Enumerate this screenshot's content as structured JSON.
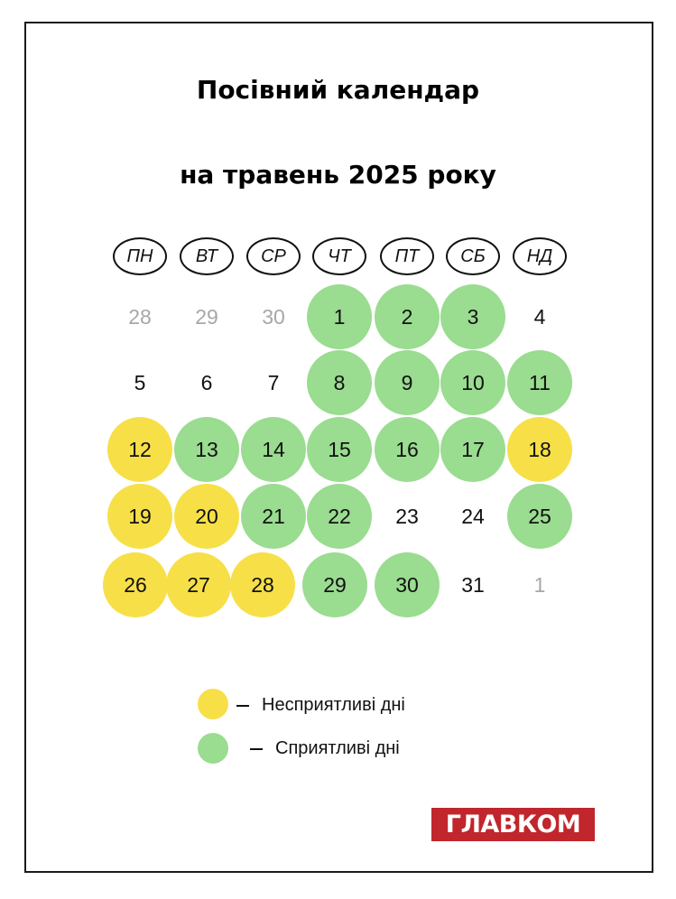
{
  "title_line1": "Посівний календар",
  "title_line2": "на травень 2025 року",
  "weekdays": [
    "ПН",
    "ВТ",
    "СР",
    "ЧТ",
    "ПТ",
    "СБ",
    "НД"
  ],
  "colors": {
    "favorable": "#9adc90",
    "unfavorable": "#f7df48",
    "muted_text": "#a7a7a7",
    "brand": "#c0262b"
  },
  "weeks": [
    [
      {
        "n": "28",
        "type": "muted"
      },
      {
        "n": "29",
        "type": "muted"
      },
      {
        "n": "30",
        "type": "muted"
      },
      {
        "n": "1",
        "type": "green"
      },
      {
        "n": "2",
        "type": "green"
      },
      {
        "n": "3",
        "type": "green"
      },
      {
        "n": "4",
        "type": "plain"
      }
    ],
    [
      {
        "n": "5",
        "type": "plain"
      },
      {
        "n": "6",
        "type": "plain"
      },
      {
        "n": "7",
        "type": "plain"
      },
      {
        "n": "8",
        "type": "green"
      },
      {
        "n": "9",
        "type": "green"
      },
      {
        "n": "10",
        "type": "green"
      },
      {
        "n": "11",
        "type": "green"
      }
    ],
    [
      {
        "n": "12",
        "type": "yellow"
      },
      {
        "n": "13",
        "type": "green"
      },
      {
        "n": "14",
        "type": "green"
      },
      {
        "n": "15",
        "type": "green"
      },
      {
        "n": "16",
        "type": "green"
      },
      {
        "n": "17",
        "type": "green"
      },
      {
        "n": "18",
        "type": "yellow"
      }
    ],
    [
      {
        "n": "19",
        "type": "yellow"
      },
      {
        "n": "20",
        "type": "yellow"
      },
      {
        "n": "21",
        "type": "green"
      },
      {
        "n": "22",
        "type": "green"
      },
      {
        "n": "23",
        "type": "plain"
      },
      {
        "n": "24",
        "type": "plain"
      },
      {
        "n": "25",
        "type": "green"
      }
    ],
    [
      {
        "n": "26",
        "type": "yellow"
      },
      {
        "n": "27",
        "type": "yellow"
      },
      {
        "n": "28",
        "type": "yellow"
      },
      {
        "n": "29",
        "type": "green"
      },
      {
        "n": "30",
        "type": "green"
      },
      {
        "n": "31",
        "type": "plain"
      },
      {
        "n": "1",
        "type": "muted"
      }
    ]
  ],
  "legend": {
    "unfavorable": "Несприятливі дні",
    "favorable": "Сприятливі дні"
  },
  "logo": "ГЛАВКОМ"
}
